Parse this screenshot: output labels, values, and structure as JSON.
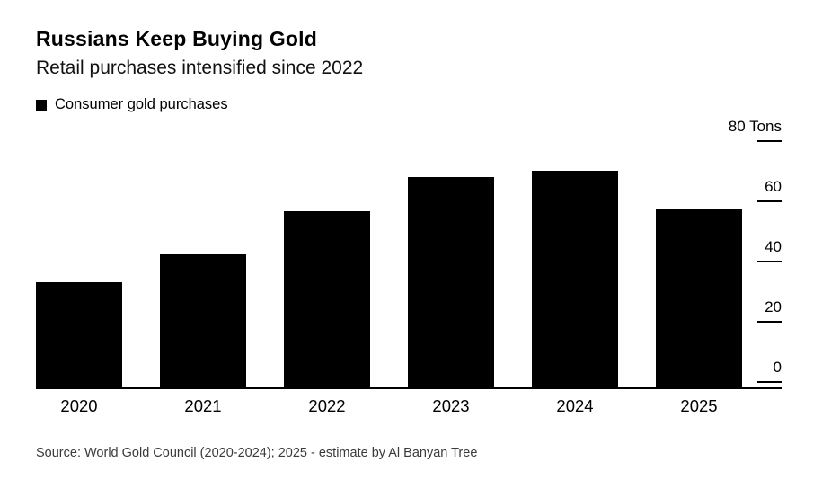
{
  "header": {
    "title": "Russians Keep Buying Gold",
    "subtitle": "Retail purchases intensified since 2022"
  },
  "legend": {
    "label": "Consumer gold purchases",
    "swatch_color": "#000000"
  },
  "source": "Source: World Gold Council (2020-2024); 2025 - estimate by Al Banyan Tree",
  "colors": {
    "bar": "#000000",
    "background": "#ffffff",
    "axis": "#000000",
    "source_text": "#3a3a3a"
  },
  "chart_data": {
    "type": "bar",
    "title": "Russians Keep Buying Gold",
    "subtitle": "Retail purchases intensified since 2022",
    "series_name": "Consumer gold purchases",
    "categories": [
      "2020",
      "2021",
      "2022",
      "2023",
      "2024",
      "2025"
    ],
    "values": [
      34,
      43,
      57,
      68,
      70,
      58
    ],
    "unit": "Tons",
    "xlabel": "",
    "ylabel": "Tons",
    "ylim": [
      0,
      80
    ],
    "grid": false,
    "legend_position": "top-left",
    "yaxis_side": "right",
    "yticks": [
      {
        "value": 80,
        "label": "80 Tons"
      },
      {
        "value": 60,
        "label": "60"
      },
      {
        "value": 40,
        "label": "40"
      },
      {
        "value": 20,
        "label": "20"
      },
      {
        "value": 0,
        "label": "0"
      }
    ]
  }
}
